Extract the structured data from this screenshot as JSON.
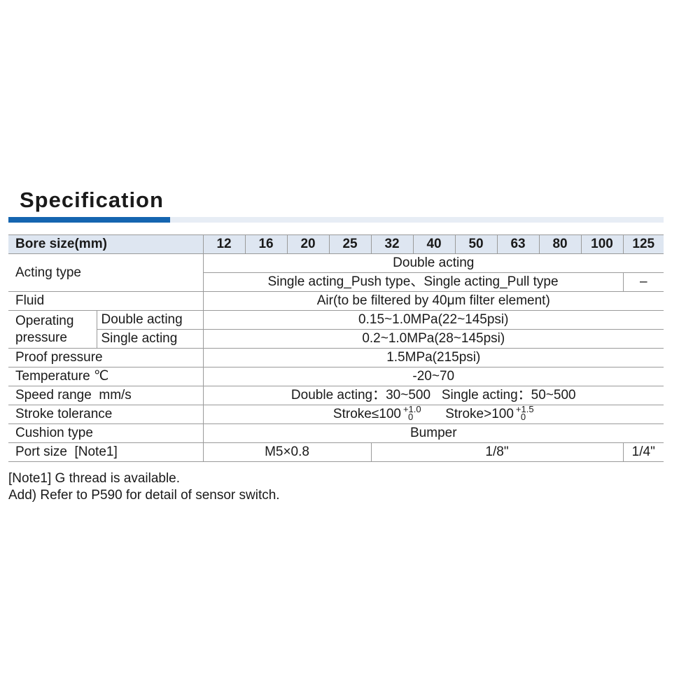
{
  "title": "Specification",
  "colors": {
    "accent": "#1565b0",
    "header_bg": "#dee6f1"
  },
  "header": {
    "label": "Bore size(mm)",
    "bores": [
      "12",
      "16",
      "20",
      "25",
      "32",
      "40",
      "50",
      "63",
      "80",
      "100",
      "125"
    ]
  },
  "rows": {
    "acting_type": {
      "label": "Acting type",
      "double": "Double acting",
      "single": "Single acting_Push type、Single acting_Pull type",
      "single_125": "–"
    },
    "fluid": {
      "label": "Fluid",
      "value": "Air(to be filtered by 40μm filter element)"
    },
    "operating_pressure": {
      "label": "Operating pressure",
      "double_label": "Double acting",
      "double_value": "0.15~1.0MPa(22~145psi)",
      "single_label": "Single acting",
      "single_value": "0.2~1.0MPa(28~145psi)"
    },
    "proof_pressure": {
      "label": "Proof pressure",
      "value": "1.5MPa(215psi)"
    },
    "temperature": {
      "label": "Temperature ℃",
      "value": "-20~70"
    },
    "speed_range": {
      "label": "Speed range  mm/s",
      "value": "Double acting：30~500   Single acting：50~500"
    },
    "stroke_tolerance": {
      "label": "Stroke tolerance",
      "a": "Stroke≤100",
      "a_upper": "+1.0",
      "a_lower": "0",
      "b": "Stroke>100",
      "b_upper": "+1.5",
      "b_lower": "0"
    },
    "cushion_type": {
      "label": "Cushion type",
      "value": "Bumper"
    },
    "port_size": {
      "label": "Port size  [Note1]",
      "small": "M5×0.8",
      "mid": "1/8\"",
      "large": "1/4\""
    }
  },
  "notes": [
    "[Note1] G thread is available.",
    "Add) Refer to P590 for detail of sensor switch."
  ]
}
